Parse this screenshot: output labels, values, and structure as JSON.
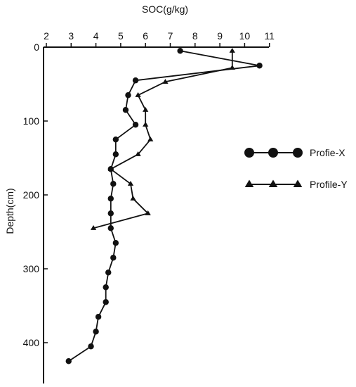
{
  "chart_data": {
    "type": "line",
    "title": "",
    "xlabel": "SOC(g/kg)",
    "ylabel": "Depth(cm)",
    "xlim": [
      2,
      11
    ],
    "ylim": [
      0,
      450
    ],
    "y_inverted": true,
    "x_axis_position": "top",
    "x_ticks": [
      2,
      3,
      4,
      5,
      6,
      7,
      8,
      9,
      10,
      11
    ],
    "y_ticks": [
      0,
      100,
      200,
      300,
      400
    ],
    "grid": false,
    "legend_position": "right",
    "series": [
      {
        "name": "Profie-X",
        "marker": "circle",
        "color": "#111111",
        "points": [
          {
            "x": 7.4,
            "y": 5
          },
          {
            "x": 10.6,
            "y": 25
          },
          {
            "x": 5.6,
            "y": 45
          },
          {
            "x": 5.3,
            "y": 65
          },
          {
            "x": 5.2,
            "y": 85
          },
          {
            "x": 5.6,
            "y": 105
          },
          {
            "x": 4.8,
            "y": 125
          },
          {
            "x": 4.8,
            "y": 145
          },
          {
            "x": 4.6,
            "y": 165
          },
          {
            "x": 4.7,
            "y": 185
          },
          {
            "x": 4.6,
            "y": 205
          },
          {
            "x": 4.6,
            "y": 225
          },
          {
            "x": 4.6,
            "y": 245
          },
          {
            "x": 4.8,
            "y": 265
          },
          {
            "x": 4.7,
            "y": 285
          },
          {
            "x": 4.5,
            "y": 305
          },
          {
            "x": 4.4,
            "y": 325
          },
          {
            "x": 4.4,
            "y": 345
          },
          {
            "x": 4.1,
            "y": 365
          },
          {
            "x": 4.0,
            "y": 385
          },
          {
            "x": 3.8,
            "y": 405
          },
          {
            "x": 2.9,
            "y": 425
          }
        ]
      },
      {
        "name": "Profile-Y",
        "marker": "triangle",
        "color": "#111111",
        "points": [
          {
            "x": 9.5,
            "y": 5
          },
          {
            "x": 9.5,
            "y": 28
          },
          {
            "x": 6.8,
            "y": 47
          },
          {
            "x": 5.7,
            "y": 65
          },
          {
            "x": 6.0,
            "y": 85
          },
          {
            "x": 6.0,
            "y": 105
          },
          {
            "x": 6.2,
            "y": 125
          },
          {
            "x": 5.7,
            "y": 145
          },
          {
            "x": 4.6,
            "y": 165
          },
          {
            "x": 5.4,
            "y": 185
          },
          {
            "x": 5.5,
            "y": 205
          },
          {
            "x": 6.1,
            "y": 225
          },
          {
            "x": 3.9,
            "y": 245
          }
        ]
      }
    ]
  }
}
